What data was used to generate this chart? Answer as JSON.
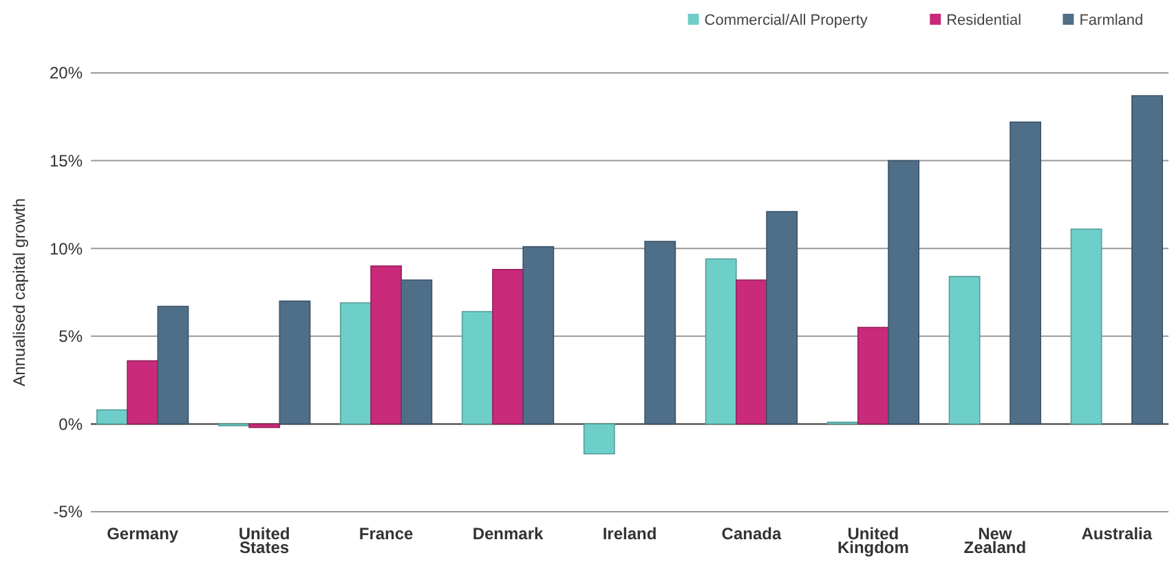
{
  "chart_data": {
    "type": "bar",
    "ylabel": "Annualised capital growth",
    "categories": [
      "Germany",
      "United States",
      "France",
      "Denmark",
      "Ireland",
      "Canada",
      "United Kingdom",
      "New Zealand",
      "Australia"
    ],
    "series": [
      {
        "name": "Commercial/All Property",
        "color": "#6ecfca",
        "values": [
          0.8,
          -0.1,
          6.9,
          6.4,
          -1.7,
          9.4,
          0.1,
          8.4,
          11.1
        ]
      },
      {
        "name": "Residential",
        "color": "#c92a7a",
        "values": [
          3.6,
          -0.2,
          9.0,
          8.8,
          null,
          8.2,
          5.5,
          null,
          null
        ]
      },
      {
        "name": "Farmland",
        "color": "#4f6f89",
        "values": [
          6.7,
          7.0,
          8.2,
          10.1,
          10.4,
          12.1,
          15.0,
          17.2,
          18.7
        ]
      }
    ],
    "ylim": [
      -5,
      20
    ],
    "yticks": [
      {
        "value": -5,
        "label": "-5%"
      },
      {
        "value": 0,
        "label": "0%"
      },
      {
        "value": 5,
        "label": "5%"
      },
      {
        "value": 10,
        "label": "10%"
      },
      {
        "value": 15,
        "label": "15%"
      },
      {
        "value": 20,
        "label": "20%"
      }
    ],
    "grid": "y",
    "legend": "top right"
  }
}
